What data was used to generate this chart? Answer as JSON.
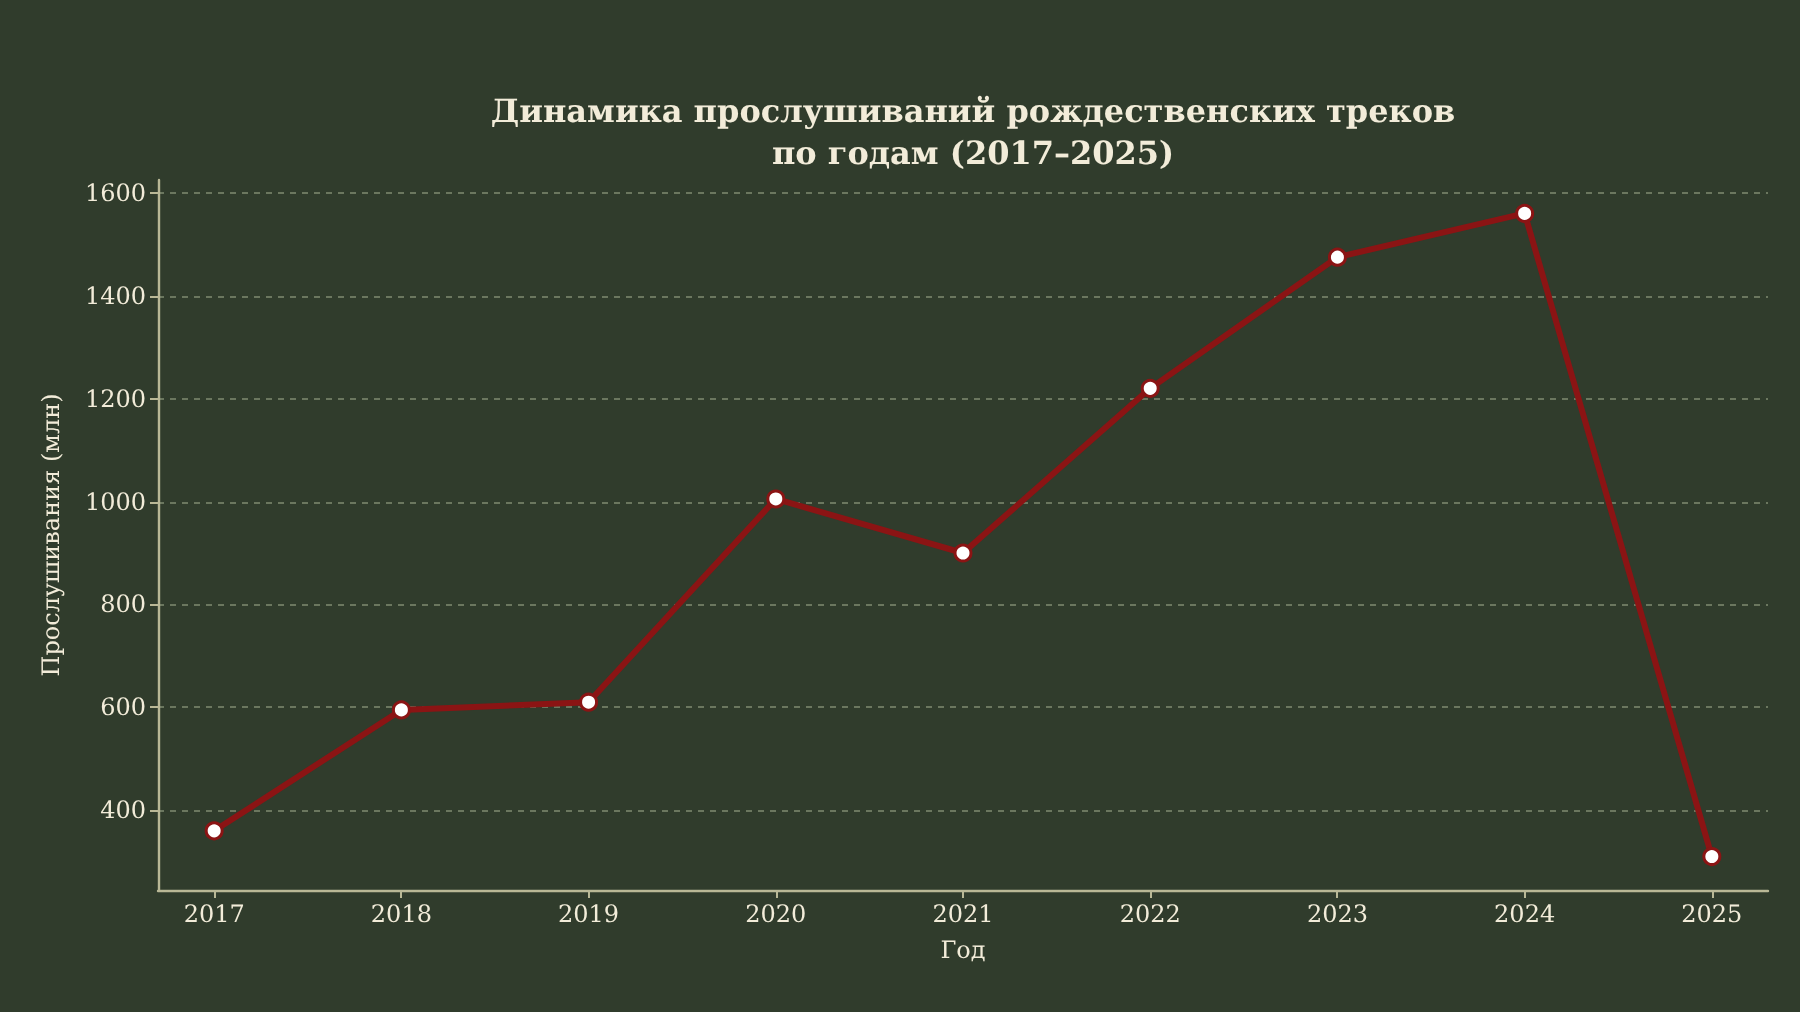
{
  "chart_data": {
    "type": "line",
    "title": "Динамика прослушиваний рождественских треков\nпо годам (2017–2025)",
    "xlabel": "Год",
    "ylabel": "Прослушивания (млн)",
    "x": [
      2017,
      2018,
      2019,
      2020,
      2021,
      2022,
      2023,
      2024,
      2025
    ],
    "series": [
      {
        "color": "#8b1414",
        "values": [
          360,
          595,
          610,
          1005,
          900,
          1220,
          1475,
          1560,
          310
        ]
      }
    ],
    "xlim": [
      2016.7,
      2025.3
    ],
    "xticks": [
      2017,
      2018,
      2019,
      2020,
      2021,
      2022,
      2023,
      2024,
      2025
    ],
    "ylim": [
      245,
      1625
    ],
    "yticks": [
      400,
      600,
      800,
      1000,
      1200,
      1400,
      1600
    ],
    "grid": "y",
    "marker": "circle",
    "line_style": "solid"
  }
}
